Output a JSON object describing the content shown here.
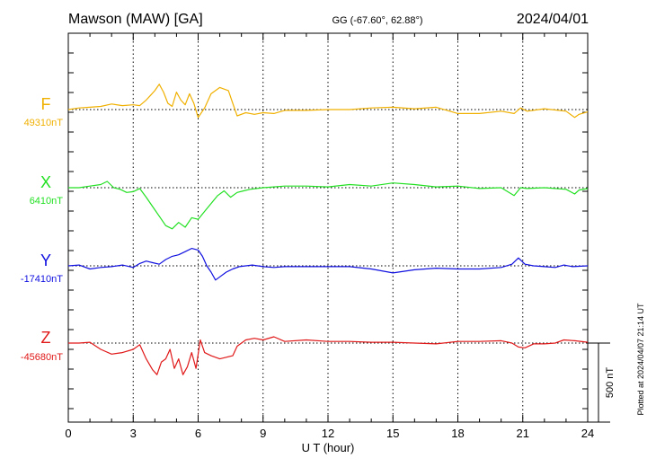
{
  "chart_data": {
    "type": "line",
    "title_left": "Mawson (MAW)  [GA]",
    "title_center": "GG (-67.60°,  62.88°)",
    "title_right": "2024/04/01",
    "xlabel": "U T (hour)",
    "x_ticks": [
      "0",
      "3",
      "6",
      "9",
      "12",
      "15",
      "18",
      "21",
      "24"
    ],
    "xlim": [
      0,
      24
    ],
    "scale_label": "500 nT",
    "scale_nT": 500,
    "plotted_note": "Plotted at 2024/04/07 21:14 UT",
    "series": [
      {
        "name": "F",
        "baseline_label": "49310nT",
        "baseline_nT": 49310,
        "color": "#f0b000",
        "points": [
          [
            0,
            0
          ],
          [
            0.5,
            10
          ],
          [
            1,
            15
          ],
          [
            1.5,
            20
          ],
          [
            2,
            35
          ],
          [
            2.5,
            25
          ],
          [
            3,
            30
          ],
          [
            3.3,
            25
          ],
          [
            3.6,
            60
          ],
          [
            3.8,
            90
          ],
          [
            4,
            120
          ],
          [
            4.2,
            160
          ],
          [
            4.4,
            110
          ],
          [
            4.6,
            40
          ],
          [
            4.8,
            20
          ],
          [
            5,
            110
          ],
          [
            5.2,
            60
          ],
          [
            5.4,
            30
          ],
          [
            5.6,
            100
          ],
          [
            5.8,
            40
          ],
          [
            6,
            -50
          ],
          [
            6.3,
            10
          ],
          [
            6.6,
            100
          ],
          [
            7,
            140
          ],
          [
            7.4,
            120
          ],
          [
            7.6,
            40
          ],
          [
            7.8,
            -40
          ],
          [
            8.2,
            -20
          ],
          [
            8.6,
            -30
          ],
          [
            9,
            -20
          ],
          [
            9.5,
            -25
          ],
          [
            10,
            -5
          ],
          [
            11,
            -5
          ],
          [
            12,
            0
          ],
          [
            13,
            0
          ],
          [
            14,
            10
          ],
          [
            15,
            15
          ],
          [
            16,
            5
          ],
          [
            17,
            15
          ],
          [
            18,
            -25
          ],
          [
            19,
            -25
          ],
          [
            20,
            -10
          ],
          [
            20.6,
            -25
          ],
          [
            20.9,
            10
          ],
          [
            21.2,
            -10
          ],
          [
            22,
            5
          ],
          [
            23,
            -10
          ],
          [
            23.4,
            -50
          ],
          [
            23.6,
            -30
          ],
          [
            24,
            -15
          ]
        ]
      },
      {
        "name": "X",
        "baseline_label": "6410nT",
        "baseline_nT": 6410,
        "color": "#22e022",
        "points": [
          [
            0,
            0
          ],
          [
            0.5,
            0
          ],
          [
            1,
            10
          ],
          [
            1.5,
            20
          ],
          [
            1.8,
            40
          ],
          [
            2.1,
            0
          ],
          [
            2.4,
            -10
          ],
          [
            2.7,
            -30
          ],
          [
            3,
            -25
          ],
          [
            3.3,
            -5
          ],
          [
            3.6,
            -60
          ],
          [
            3.9,
            -120
          ],
          [
            4.2,
            -180
          ],
          [
            4.5,
            -240
          ],
          [
            4.8,
            -260
          ],
          [
            5.1,
            -220
          ],
          [
            5.4,
            -250
          ],
          [
            5.7,
            -190
          ],
          [
            6,
            -200
          ],
          [
            6.3,
            -150
          ],
          [
            6.6,
            -100
          ],
          [
            6.9,
            -50
          ],
          [
            7.2,
            -20
          ],
          [
            7.5,
            -60
          ],
          [
            7.8,
            -30
          ],
          [
            8.1,
            -20
          ],
          [
            8.4,
            -10
          ],
          [
            9,
            0
          ],
          [
            10,
            10
          ],
          [
            11,
            10
          ],
          [
            12,
            5
          ],
          [
            13,
            20
          ],
          [
            14,
            10
          ],
          [
            15,
            30
          ],
          [
            16,
            20
          ],
          [
            17,
            5
          ],
          [
            18,
            10
          ],
          [
            19,
            -5
          ],
          [
            20,
            0
          ],
          [
            20.6,
            -50
          ],
          [
            20.9,
            0
          ],
          [
            21.2,
            -5
          ],
          [
            22,
            0
          ],
          [
            23,
            -10
          ],
          [
            23.4,
            -40
          ],
          [
            23.6,
            -15
          ],
          [
            24,
            -5
          ]
        ]
      },
      {
        "name": "Y",
        "baseline_label": "-17410nT",
        "baseline_nT": -17410,
        "color": "#1010e0",
        "points": [
          [
            0,
            0
          ],
          [
            0.5,
            5
          ],
          [
            1,
            -20
          ],
          [
            1.5,
            -10
          ],
          [
            2,
            -5
          ],
          [
            2.5,
            5
          ],
          [
            3,
            -10
          ],
          [
            3.3,
            15
          ],
          [
            3.6,
            30
          ],
          [
            3.9,
            20
          ],
          [
            4.2,
            10
          ],
          [
            4.5,
            40
          ],
          [
            4.8,
            60
          ],
          [
            5.1,
            70
          ],
          [
            5.4,
            90
          ],
          [
            5.7,
            110
          ],
          [
            6,
            100
          ],
          [
            6.2,
            60
          ],
          [
            6.4,
            0
          ],
          [
            6.6,
            -40
          ],
          [
            6.8,
            -90
          ],
          [
            7,
            -70
          ],
          [
            7.3,
            -40
          ],
          [
            7.6,
            -20
          ],
          [
            7.9,
            -5
          ],
          [
            8.2,
            0
          ],
          [
            8.5,
            5
          ],
          [
            9,
            -5
          ],
          [
            9.5,
            -10
          ],
          [
            10,
            -5
          ],
          [
            11,
            -5
          ],
          [
            12,
            -5
          ],
          [
            13,
            -5
          ],
          [
            14,
            -20
          ],
          [
            15,
            -45
          ],
          [
            16,
            -25
          ],
          [
            17,
            -15
          ],
          [
            18,
            -20
          ],
          [
            19,
            -20
          ],
          [
            20,
            -10
          ],
          [
            20.5,
            10
          ],
          [
            20.8,
            50
          ],
          [
            21.1,
            10
          ],
          [
            21.5,
            0
          ],
          [
            22,
            -5
          ],
          [
            22.5,
            -10
          ],
          [
            22.9,
            5
          ],
          [
            23.3,
            -5
          ],
          [
            24,
            0
          ]
        ]
      },
      {
        "name": "Z",
        "baseline_label": "-45680nT",
        "baseline_nT": -45680,
        "color": "#e01818",
        "points": [
          [
            0,
            0
          ],
          [
            0.5,
            0
          ],
          [
            1,
            5
          ],
          [
            1.5,
            -40
          ],
          [
            2,
            -70
          ],
          [
            2.5,
            -60
          ],
          [
            3,
            -40
          ],
          [
            3.3,
            -10
          ],
          [
            3.6,
            -100
          ],
          [
            3.9,
            -170
          ],
          [
            4.1,
            -200
          ],
          [
            4.3,
            -120
          ],
          [
            4.5,
            -100
          ],
          [
            4.7,
            -40
          ],
          [
            4.9,
            -160
          ],
          [
            5.1,
            -100
          ],
          [
            5.3,
            -200
          ],
          [
            5.5,
            -150
          ],
          [
            5.7,
            -60
          ],
          [
            5.9,
            -160
          ],
          [
            6.1,
            20
          ],
          [
            6.3,
            -60
          ],
          [
            6.6,
            -80
          ],
          [
            7,
            -100
          ],
          [
            7.3,
            -90
          ],
          [
            7.6,
            -80
          ],
          [
            7.8,
            -20
          ],
          [
            8.2,
            20
          ],
          [
            8.6,
            30
          ],
          [
            9,
            20
          ],
          [
            9.5,
            40
          ],
          [
            10,
            10
          ],
          [
            11,
            20
          ],
          [
            12,
            10
          ],
          [
            13,
            10
          ],
          [
            14,
            5
          ],
          [
            15,
            5
          ],
          [
            16,
            0
          ],
          [
            17,
            -5
          ],
          [
            18,
            10
          ],
          [
            19,
            10
          ],
          [
            20,
            15
          ],
          [
            20.5,
            0
          ],
          [
            20.8,
            -25
          ],
          [
            21.1,
            -30
          ],
          [
            21.5,
            -5
          ],
          [
            22,
            -5
          ],
          [
            22.5,
            0
          ],
          [
            22.9,
            20
          ],
          [
            23.4,
            15
          ],
          [
            24,
            5
          ]
        ]
      }
    ]
  }
}
